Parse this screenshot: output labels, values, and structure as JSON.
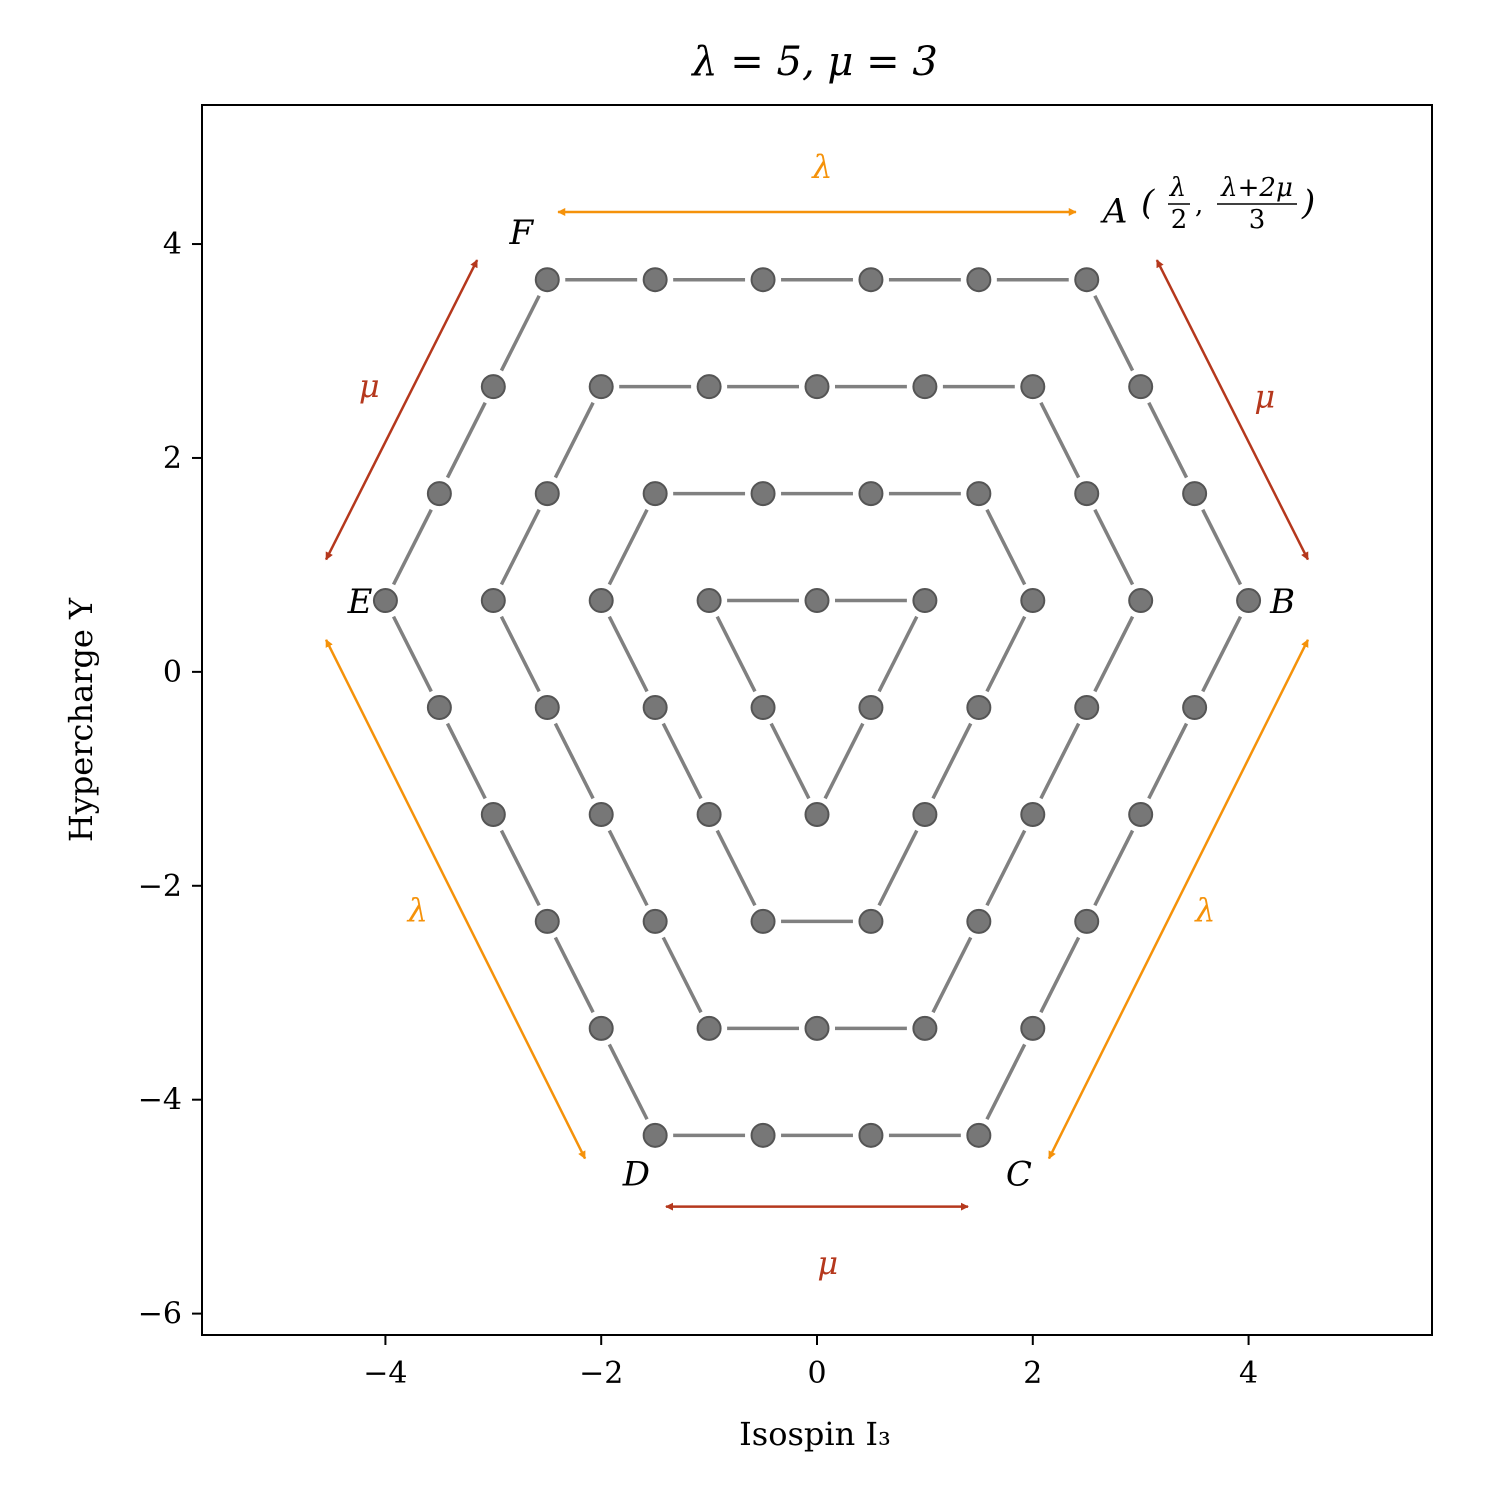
{
  "chart_data": {
    "type": "scatter",
    "title": "λ = 5, μ = 3",
    "xlabel": "Isospin I₃",
    "ylabel": "Hypercharge Y",
    "xlim": [
      -5.7,
      5.7
    ],
    "ylim": [
      -6.2,
      5.3
    ],
    "xticks": [
      -4,
      -2,
      0,
      2,
      4
    ],
    "yticks": [
      -6,
      -4,
      -2,
      0,
      2,
      4
    ],
    "tick_labels": {
      "x": [
        "−4",
        "−2",
        "0",
        "2",
        "4"
      ],
      "y": [
        "−6",
        "−4",
        "−2",
        "0",
        "2",
        "4"
      ]
    },
    "grid": false,
    "colors": {
      "marker_fill": "#777777",
      "marker_edge": "#555555",
      "layer_line": "#808080",
      "lambda": "#f5920a",
      "mu": "#b5381d"
    },
    "layers": [
      [
        [
          -2.5,
          3.6667
        ],
        [
          -1.5,
          3.6667
        ],
        [
          -0.5,
          3.6667
        ],
        [
          0.5,
          3.6667
        ],
        [
          1.5,
          3.6667
        ],
        [
          2.5,
          3.6667
        ],
        [
          3.0,
          2.6667
        ],
        [
          3.5,
          1.6667
        ],
        [
          4.0,
          0.6667
        ],
        [
          3.5,
          -0.3333
        ],
        [
          3.0,
          -1.3333
        ],
        [
          2.5,
          -2.3333
        ],
        [
          2.0,
          -3.3333
        ],
        [
          1.5,
          -4.3333
        ],
        [
          0.5,
          -4.3333
        ],
        [
          -0.5,
          -4.3333
        ],
        [
          -1.5,
          -4.3333
        ],
        [
          -2.0,
          -3.3333
        ],
        [
          -2.5,
          -2.3333
        ],
        [
          -3.0,
          -1.3333
        ],
        [
          -3.5,
          -0.3333
        ],
        [
          -4.0,
          0.6667
        ],
        [
          -3.5,
          1.6667
        ],
        [
          -3.0,
          2.6667
        ]
      ],
      [
        [
          -2.0,
          2.6667
        ],
        [
          -1.0,
          2.6667
        ],
        [
          0.0,
          2.6667
        ],
        [
          1.0,
          2.6667
        ],
        [
          2.0,
          2.6667
        ],
        [
          2.5,
          1.6667
        ],
        [
          3.0,
          0.6667
        ],
        [
          2.5,
          -0.3333
        ],
        [
          2.0,
          -1.3333
        ],
        [
          1.5,
          -2.3333
        ],
        [
          1.0,
          -3.3333
        ],
        [
          0.0,
          -3.3333
        ],
        [
          -1.0,
          -3.3333
        ],
        [
          -1.5,
          -2.3333
        ],
        [
          -2.0,
          -1.3333
        ],
        [
          -2.5,
          -0.3333
        ],
        [
          -3.0,
          0.6667
        ],
        [
          -2.5,
          1.6667
        ]
      ],
      [
        [
          -1.5,
          1.6667
        ],
        [
          -0.5,
          1.6667
        ],
        [
          0.5,
          1.6667
        ],
        [
          1.5,
          1.6667
        ],
        [
          2.0,
          0.6667
        ],
        [
          1.5,
          -0.3333
        ],
        [
          1.0,
          -1.3333
        ],
        [
          0.5,
          -2.3333
        ],
        [
          -0.5,
          -2.3333
        ],
        [
          -1.0,
          -1.3333
        ],
        [
          -1.5,
          -0.3333
        ],
        [
          -2.0,
          0.6667
        ]
      ],
      [
        [
          -1.0,
          0.6667
        ],
        [
          0.0,
          0.6667
        ],
        [
          1.0,
          0.6667
        ],
        [
          0.5,
          -0.3333
        ],
        [
          0.0,
          -1.3333
        ],
        [
          -0.5,
          -0.3333
        ]
      ]
    ],
    "vertex_labels": [
      {
        "name": "A",
        "x": 2.65,
        "y": 4.2
      },
      {
        "name": "B",
        "x": 4.2,
        "y": 0.55
      },
      {
        "name": "C",
        "x": 1.75,
        "y": -4.8
      },
      {
        "name": "D",
        "x": -1.8,
        "y": -4.8
      },
      {
        "name": "E",
        "x": -4.35,
        "y": 0.55
      },
      {
        "name": "F",
        "x": -2.85,
        "y": 4.0
      }
    ],
    "vertex_a_coordinate": {
      "lambda": "λ",
      "two": "2",
      "lambda_plus_two_mu": "λ+2μ",
      "three": "3"
    },
    "side_arrows": [
      {
        "label": "λ",
        "color": "lambda",
        "from": [
          -2.4,
          4.3
        ],
        "to": [
          2.4,
          4.3
        ],
        "label_pos": [
          0.05,
          4.7
        ]
      },
      {
        "label": "μ",
        "color": "mu",
        "from": [
          3.15,
          3.85
        ],
        "to": [
          4.55,
          1.05
        ],
        "label_pos": [
          4.15,
          2.55
        ]
      },
      {
        "label": "λ",
        "color": "lambda",
        "from": [
          4.55,
          0.3
        ],
        "to": [
          2.15,
          -4.55
        ],
        "label_pos": [
          3.6,
          -2.25
        ]
      },
      {
        "label": "μ",
        "color": "mu",
        "from": [
          1.4,
          -5.0
        ],
        "to": [
          -1.4,
          -5.0
        ],
        "label_pos": [
          0.1,
          -5.55
        ]
      },
      {
        "label": "λ",
        "color": "lambda",
        "from": [
          -2.15,
          -4.55
        ],
        "to": [
          -4.55,
          0.3
        ],
        "label_pos": [
          -3.7,
          -2.25
        ]
      },
      {
        "label": "μ",
        "color": "mu",
        "from": [
          -4.55,
          1.05
        ],
        "to": [
          -3.15,
          3.85
        ],
        "label_pos": [
          -4.15,
          2.65
        ]
      }
    ]
  }
}
